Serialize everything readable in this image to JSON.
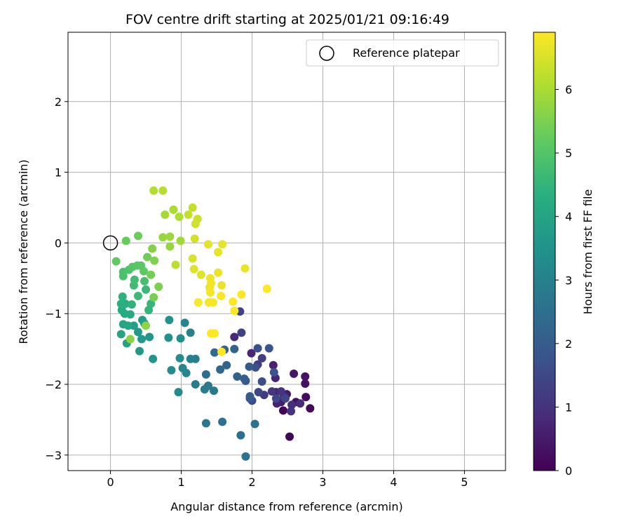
{
  "chart_data": {
    "type": "scatter",
    "title": "FOV centre drift starting at 2025/01/21 09:16:49",
    "xlabel": "Angular distance from reference (arcmin)",
    "ylabel": "Rotation from reference (arcmin)",
    "xlim": [
      -0.6,
      5.58
    ],
    "ylim": [
      -3.22,
      2.98
    ],
    "xticks": [
      0,
      1,
      2,
      3,
      4,
      5
    ],
    "xtick_labels": [
      "0",
      "1",
      "2",
      "3",
      "4",
      "5"
    ],
    "yticks": [
      -3,
      -2,
      -1,
      0,
      1,
      2
    ],
    "ytick_labels": [
      "−3",
      "−2",
      "−1",
      "0",
      "1",
      "2"
    ],
    "grid": true,
    "legend": {
      "position": "top-right",
      "label": "Reference platepar"
    },
    "reference_point": {
      "x": 0,
      "y": 0
    },
    "colorbar": {
      "label": "Hours from first FF file",
      "colormap": "viridis",
      "range": [
        0,
        6.9
      ],
      "ticks": [
        0,
        1,
        2,
        3,
        4,
        5,
        6
      ],
      "tick_labels": [
        "0",
        "1",
        "2",
        "3",
        "4",
        "5",
        "6"
      ]
    },
    "points": [
      {
        "x": 2.44,
        "y": -2.37,
        "c": 0.05
      },
      {
        "x": 2.53,
        "y": -2.74,
        "c": 0.1
      },
      {
        "x": 2.82,
        "y": -2.34,
        "c": 0.15
      },
      {
        "x": 2.76,
        "y": -2.18,
        "c": 0.2
      },
      {
        "x": 2.62,
        "y": -2.25,
        "c": 0.25
      },
      {
        "x": 2.75,
        "y": -1.99,
        "c": 0.3
      },
      {
        "x": 2.75,
        "y": -1.89,
        "c": 0.35
      },
      {
        "x": 2.59,
        "y": -1.85,
        "c": 0.4
      },
      {
        "x": 2.49,
        "y": -2.14,
        "c": 0.45
      },
      {
        "x": 2.41,
        "y": -2.25,
        "c": 0.5
      },
      {
        "x": 2.34,
        "y": -2.11,
        "c": 0.55
      },
      {
        "x": 2.35,
        "y": -2.27,
        "c": 0.6
      },
      {
        "x": 2.3,
        "y": -1.73,
        "c": 0.65
      },
      {
        "x": 2.33,
        "y": -1.91,
        "c": 0.7
      },
      {
        "x": 1.99,
        "y": -1.56,
        "c": 0.75
      },
      {
        "x": 1.75,
        "y": -1.33,
        "c": 0.8
      },
      {
        "x": 2.68,
        "y": -2.27,
        "c": 0.85
      },
      {
        "x": 2.56,
        "y": -2.29,
        "c": 0.9
      },
      {
        "x": 2.45,
        "y": -2.17,
        "c": 0.95
      },
      {
        "x": 2.55,
        "y": -2.38,
        "c": 1.0
      },
      {
        "x": 2.41,
        "y": -2.1,
        "c": 1.05
      },
      {
        "x": 2.28,
        "y": -2.1,
        "c": 1.1
      },
      {
        "x": 2.17,
        "y": -2.15,
        "c": 1.15
      },
      {
        "x": 2.08,
        "y": -1.72,
        "c": 1.2
      },
      {
        "x": 2.14,
        "y": -1.63,
        "c": 1.25
      },
      {
        "x": 1.85,
        "y": -1.27,
        "c": 1.3
      },
      {
        "x": 1.83,
        "y": -0.97,
        "c": 1.35
      },
      {
        "x": 2.47,
        "y": -2.2,
        "c": 1.4
      },
      {
        "x": 2.34,
        "y": -2.2,
        "c": 1.45
      },
      {
        "x": 2.09,
        "y": -2.11,
        "c": 1.5
      },
      {
        "x": 2.0,
        "y": -2.23,
        "c": 1.55
      },
      {
        "x": 2.14,
        "y": -1.96,
        "c": 1.6
      },
      {
        "x": 2.05,
        "y": -1.76,
        "c": 1.65
      },
      {
        "x": 2.08,
        "y": -1.49,
        "c": 1.7
      },
      {
        "x": 2.24,
        "y": -1.49,
        "c": 1.75
      },
      {
        "x": 2.31,
        "y": -1.83,
        "c": 1.8
      },
      {
        "x": 1.97,
        "y": -2.2,
        "c": 1.85
      },
      {
        "x": 1.91,
        "y": -1.95,
        "c": 1.9
      },
      {
        "x": 1.96,
        "y": -1.75,
        "c": 1.95
      },
      {
        "x": 1.97,
        "y": -2.17,
        "c": 2.0
      },
      {
        "x": 1.89,
        "y": -1.92,
        "c": 2.05
      },
      {
        "x": 1.79,
        "y": -1.89,
        "c": 2.1
      },
      {
        "x": 1.75,
        "y": -1.5,
        "c": 2.15
      },
      {
        "x": 1.61,
        "y": -1.51,
        "c": 2.2
      },
      {
        "x": 1.64,
        "y": -1.73,
        "c": 2.25
      },
      {
        "x": 1.55,
        "y": -1.79,
        "c": 2.3
      },
      {
        "x": 1.47,
        "y": -1.55,
        "c": 2.4
      },
      {
        "x": 1.35,
        "y": -1.86,
        "c": 2.45
      },
      {
        "x": 1.84,
        "y": -2.72,
        "c": 2.5
      },
      {
        "x": 1.58,
        "y": -2.53,
        "c": 2.55
      },
      {
        "x": 2.04,
        "y": -2.56,
        "c": 2.6
      },
      {
        "x": 1.91,
        "y": -3.02,
        "c": 2.65
      },
      {
        "x": 1.35,
        "y": -2.55,
        "c": 2.7
      },
      {
        "x": 1.46,
        "y": -2.09,
        "c": 2.75
      },
      {
        "x": 1.38,
        "y": -2.02,
        "c": 2.8
      },
      {
        "x": 1.33,
        "y": -2.07,
        "c": 2.85
      },
      {
        "x": 1.2,
        "y": -2.0,
        "c": 2.9
      },
      {
        "x": 1.2,
        "y": -1.64,
        "c": 2.95
      },
      {
        "x": 1.13,
        "y": -1.64,
        "c": 3.0
      },
      {
        "x": 1.13,
        "y": -1.27,
        "c": 3.05
      },
      {
        "x": 1.05,
        "y": -1.13,
        "c": 3.1
      },
      {
        "x": 1.07,
        "y": -1.84,
        "c": 3.15
      },
      {
        "x": 1.02,
        "y": -1.77,
        "c": 3.2
      },
      {
        "x": 0.96,
        "y": -2.11,
        "c": 3.25
      },
      {
        "x": 0.86,
        "y": -1.8,
        "c": 3.3
      },
      {
        "x": 0.98,
        "y": -1.63,
        "c": 3.35
      },
      {
        "x": 0.99,
        "y": -1.35,
        "c": 3.4
      },
      {
        "x": 0.82,
        "y": -1.34,
        "c": 3.45
      },
      {
        "x": 0.83,
        "y": -1.09,
        "c": 3.5
      },
      {
        "x": 0.6,
        "y": -1.64,
        "c": 3.55
      },
      {
        "x": 0.55,
        "y": -1.33,
        "c": 3.6
      },
      {
        "x": 0.41,
        "y": -1.53,
        "c": 3.65
      },
      {
        "x": 0.44,
        "y": -1.36,
        "c": 3.7
      },
      {
        "x": 0.39,
        "y": -1.26,
        "c": 3.75
      },
      {
        "x": 0.45,
        "y": -1.09,
        "c": 3.8
      },
      {
        "x": 0.48,
        "y": -1.14,
        "c": 3.85
      },
      {
        "x": 0.33,
        "y": -1.17,
        "c": 3.9
      },
      {
        "x": 0.23,
        "y": -1.42,
        "c": 3.95
      },
      {
        "x": 0.15,
        "y": -1.29,
        "c": 4.0
      },
      {
        "x": 0.18,
        "y": -1.15,
        "c": 4.05
      },
      {
        "x": 0.25,
        "y": -1.17,
        "c": 4.1
      },
      {
        "x": 0.28,
        "y": -1.01,
        "c": 4.15
      },
      {
        "x": 0.2,
        "y": -1.0,
        "c": 4.2
      },
      {
        "x": 0.16,
        "y": -0.95,
        "c": 4.25
      },
      {
        "x": 0.21,
        "y": -0.86,
        "c": 4.3
      },
      {
        "x": 0.15,
        "y": -0.86,
        "c": 4.35
      },
      {
        "x": 0.17,
        "y": -0.76,
        "c": 4.4
      },
      {
        "x": 0.3,
        "y": -0.87,
        "c": 4.45
      },
      {
        "x": 0.54,
        "y": -0.95,
        "c": 4.5
      },
      {
        "x": 0.57,
        "y": -0.86,
        "c": 4.55
      },
      {
        "x": 0.5,
        "y": -0.66,
        "c": 4.6
      },
      {
        "x": 0.39,
        "y": -0.75,
        "c": 4.65
      },
      {
        "x": 0.33,
        "y": -0.6,
        "c": 4.7
      },
      {
        "x": 0.34,
        "y": -0.52,
        "c": 4.75
      },
      {
        "x": 0.48,
        "y": -0.54,
        "c": 4.8
      },
      {
        "x": 0.18,
        "y": -0.41,
        "c": 4.85
      },
      {
        "x": 0.18,
        "y": -0.47,
        "c": 4.9
      },
      {
        "x": 0.26,
        "y": -0.38,
        "c": 4.95
      },
      {
        "x": 0.31,
        "y": -0.34,
        "c": 5.0
      },
      {
        "x": 0.38,
        "y": -0.32,
        "c": 5.05
      },
      {
        "x": 0.43,
        "y": -0.32,
        "c": 5.1
      },
      {
        "x": 0.47,
        "y": -0.4,
        "c": 5.15
      },
      {
        "x": 0.08,
        "y": -0.26,
        "c": 5.2
      },
      {
        "x": 0.22,
        "y": 0.03,
        "c": 5.25
      },
      {
        "x": 0.39,
        "y": 0.1,
        "c": 5.3
      },
      {
        "x": 0.52,
        "y": -0.2,
        "c": 5.35
      },
      {
        "x": 0.57,
        "y": -0.45,
        "c": 5.4
      },
      {
        "x": 0.61,
        "y": -0.77,
        "c": 5.45
      },
      {
        "x": 0.68,
        "y": -0.62,
        "c": 5.5
      },
      {
        "x": 0.62,
        "y": -0.25,
        "c": 5.55
      },
      {
        "x": 0.59,
        "y": -0.08,
        "c": 5.6
      },
      {
        "x": 0.28,
        "y": -1.36,
        "c": 5.65
      },
      {
        "x": 0.5,
        "y": -1.17,
        "c": 5.7
      },
      {
        "x": 0.84,
        "y": -0.05,
        "c": 5.75
      },
      {
        "x": 0.74,
        "y": 0.08,
        "c": 5.8
      },
      {
        "x": 0.84,
        "y": 0.09,
        "c": 5.85
      },
      {
        "x": 0.99,
        "y": 0.03,
        "c": 5.9
      },
      {
        "x": 0.77,
        "y": 0.4,
        "c": 5.95
      },
      {
        "x": 0.89,
        "y": 0.47,
        "c": 6.0
      },
      {
        "x": 0.97,
        "y": 0.37,
        "c": 6.05
      },
      {
        "x": 0.61,
        "y": 0.74,
        "c": 6.1
      },
      {
        "x": 0.74,
        "y": 0.74,
        "c": 6.15
      },
      {
        "x": 0.92,
        "y": -0.31,
        "c": 6.2
      },
      {
        "x": 1.16,
        "y": 0.5,
        "c": 6.25
      },
      {
        "x": 1.1,
        "y": 0.4,
        "c": 6.3
      },
      {
        "x": 1.23,
        "y": 0.34,
        "c": 6.35
      },
      {
        "x": 1.2,
        "y": 0.27,
        "c": 6.4
      },
      {
        "x": 1.19,
        "y": 0.06,
        "c": 6.45
      },
      {
        "x": 1.16,
        "y": -0.22,
        "c": 6.5
      },
      {
        "x": 1.18,
        "y": -0.37,
        "c": 6.55
      },
      {
        "x": 1.28,
        "y": -0.45,
        "c": 6.6
      },
      {
        "x": 1.38,
        "y": -0.02,
        "c": 6.62
      },
      {
        "x": 1.58,
        "y": -0.02,
        "c": 6.64
      },
      {
        "x": 1.52,
        "y": -0.13,
        "c": 6.66
      },
      {
        "x": 1.52,
        "y": -0.42,
        "c": 6.68
      },
      {
        "x": 1.57,
        "y": -0.6,
        "c": 6.7
      },
      {
        "x": 1.9,
        "y": -0.36,
        "c": 6.72
      },
      {
        "x": 1.41,
        "y": -0.5,
        "c": 6.74
      },
      {
        "x": 1.42,
        "y": -0.57,
        "c": 6.76
      },
      {
        "x": 1.4,
        "y": -0.63,
        "c": 6.78
      },
      {
        "x": 1.41,
        "y": -0.7,
        "c": 6.8
      },
      {
        "x": 1.56,
        "y": -0.75,
        "c": 6.82
      },
      {
        "x": 1.39,
        "y": -0.84,
        "c": 6.84
      },
      {
        "x": 1.45,
        "y": -0.84,
        "c": 6.86
      },
      {
        "x": 1.24,
        "y": -0.84,
        "c": 6.87
      },
      {
        "x": 1.85,
        "y": -0.73,
        "c": 6.88
      },
      {
        "x": 2.21,
        "y": -0.65,
        "c": 6.89
      },
      {
        "x": 1.73,
        "y": -0.83,
        "c": 6.9
      },
      {
        "x": 1.75,
        "y": -0.96,
        "c": 6.9
      },
      {
        "x": 1.42,
        "y": -1.28,
        "c": 6.9
      },
      {
        "x": 1.47,
        "y": -1.28,
        "c": 6.9
      },
      {
        "x": 1.57,
        "y": -1.54,
        "c": 6.9
      }
    ]
  }
}
